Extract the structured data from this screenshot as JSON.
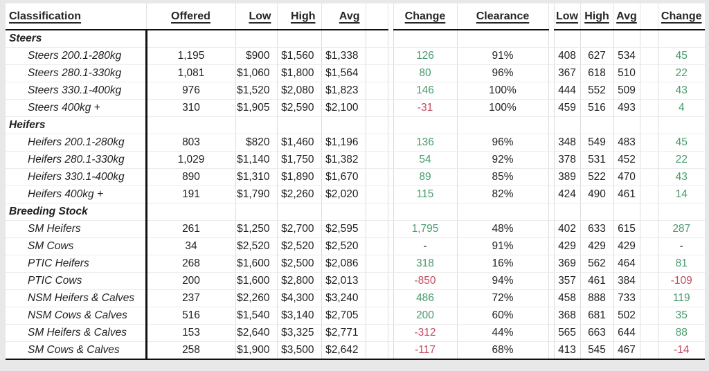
{
  "colors": {
    "positive_change": "#479a6c",
    "negative_change": "#c44a5e",
    "neutral_text": "#1f1f1f",
    "page_background": "#e8e8e8",
    "table_background": "#ffffff"
  },
  "table": {
    "headers": {
      "classification": "Classification",
      "offered": "Offered",
      "low": "Low",
      "high": "High",
      "avg": "Avg",
      "change": "Change",
      "clearance": "Clearance",
      "low_c": "Low",
      "high_c": "High",
      "avg_c": "Avg",
      "change_c": "Change"
    },
    "sections": [
      {
        "label": "Steers",
        "rows": [
          {
            "classification": "Steers 200.1-280kg",
            "offered": "1,195",
            "low": "$900",
            "high": "$1,560",
            "avg": "$1,338",
            "change": "126",
            "clearance": "91%",
            "low_c": "408",
            "high_c": "627",
            "avg_c": "534",
            "change_c": "45"
          },
          {
            "classification": "Steers 280.1-330kg",
            "offered": "1,081",
            "low": "$1,060",
            "high": "$1,800",
            "avg": "$1,564",
            "change": "80",
            "clearance": "96%",
            "low_c": "367",
            "high_c": "618",
            "avg_c": "510",
            "change_c": "22"
          },
          {
            "classification": "Steers 330.1-400kg",
            "offered": "976",
            "low": "$1,520",
            "high": "$2,080",
            "avg": "$1,823",
            "change": "146",
            "clearance": "100%",
            "low_c": "444",
            "high_c": "552",
            "avg_c": "509",
            "change_c": "43"
          },
          {
            "classification": "Steers 400kg +",
            "offered": "310",
            "low": "$1,905",
            "high": "$2,590",
            "avg": "$2,100",
            "change": "-31",
            "clearance": "100%",
            "low_c": "459",
            "high_c": "516",
            "avg_c": "493",
            "change_c": "4"
          }
        ]
      },
      {
        "label": "Heifers",
        "rows": [
          {
            "classification": "Heifers 200.1-280kg",
            "offered": "803",
            "low": "$820",
            "high": "$1,460",
            "avg": "$1,196",
            "change": "136",
            "clearance": "96%",
            "low_c": "348",
            "high_c": "549",
            "avg_c": "483",
            "change_c": "45"
          },
          {
            "classification": "Heifers 280.1-330kg",
            "offered": "1,029",
            "low": "$1,140",
            "high": "$1,750",
            "avg": "$1,382",
            "change": "54",
            "clearance": "92%",
            "low_c": "378",
            "high_c": "531",
            "avg_c": "452",
            "change_c": "22"
          },
          {
            "classification": "Heifers 330.1-400kg",
            "offered": "890",
            "low": "$1,310",
            "high": "$1,890",
            "avg": "$1,670",
            "change": "89",
            "clearance": "85%",
            "low_c": "389",
            "high_c": "522",
            "avg_c": "470",
            "change_c": "43"
          },
          {
            "classification": "Heifers 400kg +",
            "offered": "191",
            "low": "$1,790",
            "high": "$2,260",
            "avg": "$2,020",
            "change": "115",
            "clearance": "82%",
            "low_c": "424",
            "high_c": "490",
            "avg_c": "461",
            "change_c": "14"
          }
        ]
      },
      {
        "label": "Breeding Stock",
        "rows": [
          {
            "classification": "SM Heifers",
            "offered": "261",
            "low": "$1,250",
            "high": "$2,700",
            "avg": "$2,595",
            "change": "1,795",
            "clearance": "48%",
            "low_c": "402",
            "high_c": "633",
            "avg_c": "615",
            "change_c": "287"
          },
          {
            "classification": "SM Cows",
            "offered": "34",
            "low": "$2,520",
            "high": "$2,520",
            "avg": "$2,520",
            "change": "-",
            "clearance": "91%",
            "low_c": "429",
            "high_c": "429",
            "avg_c": "429",
            "change_c": "-"
          },
          {
            "classification": "PTIC Heifers",
            "offered": "268",
            "low": "$1,600",
            "high": "$2,500",
            "avg": "$2,086",
            "change": "318",
            "clearance": "16%",
            "low_c": "369",
            "high_c": "562",
            "avg_c": "464",
            "change_c": "81"
          },
          {
            "classification": "PTIC Cows",
            "offered": "200",
            "low": "$1,600",
            "high": "$2,800",
            "avg": "$2,013",
            "change": "-850",
            "clearance": "94%",
            "low_c": "357",
            "high_c": "461",
            "avg_c": "384",
            "change_c": "-109"
          },
          {
            "classification": "NSM Heifers & Calves",
            "offered": "237",
            "low": "$2,260",
            "high": "$4,300",
            "avg": "$3,240",
            "change": "486",
            "clearance": "72%",
            "low_c": "458",
            "high_c": "888",
            "avg_c": "733",
            "change_c": "119"
          },
          {
            "classification": "NSM Cows & Calves",
            "offered": "516",
            "low": "$1,540",
            "high": "$3,140",
            "avg": "$2,705",
            "change": "200",
            "clearance": "60%",
            "low_c": "368",
            "high_c": "681",
            "avg_c": "502",
            "change_c": "35"
          },
          {
            "classification": "SM Heifers & Calves",
            "offered": "153",
            "low": "$2,640",
            "high": "$3,325",
            "avg": "$2,771",
            "change": "-312",
            "clearance": "44%",
            "low_c": "565",
            "high_c": "663",
            "avg_c": "644",
            "change_c": "88"
          },
          {
            "classification": "SM Cows & Calves",
            "offered": "258",
            "low": "$1,900",
            "high": "$3,500",
            "avg": "$2,642",
            "change": "-117",
            "clearance": "68%",
            "low_c": "413",
            "high_c": "545",
            "avg_c": "467",
            "change_c": "-14"
          }
        ]
      }
    ]
  }
}
